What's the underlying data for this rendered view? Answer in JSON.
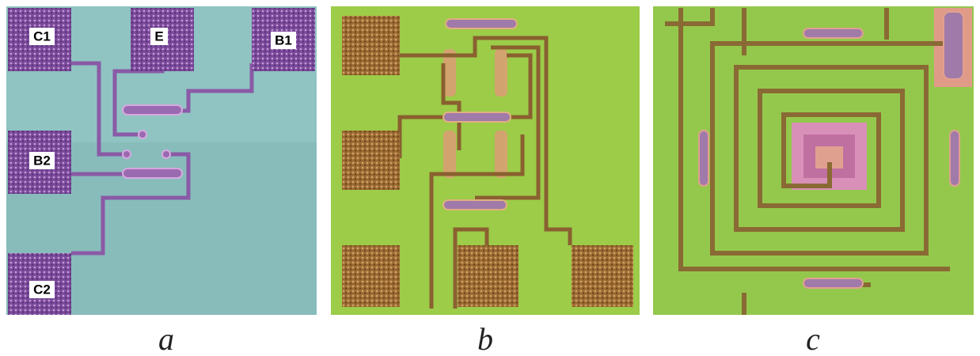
{
  "panels": [
    {
      "label": "a",
      "pads": [
        "C1",
        "E",
        "B1",
        "B2",
        "C2"
      ]
    },
    {
      "label": "b"
    },
    {
      "label": "c"
    }
  ]
}
